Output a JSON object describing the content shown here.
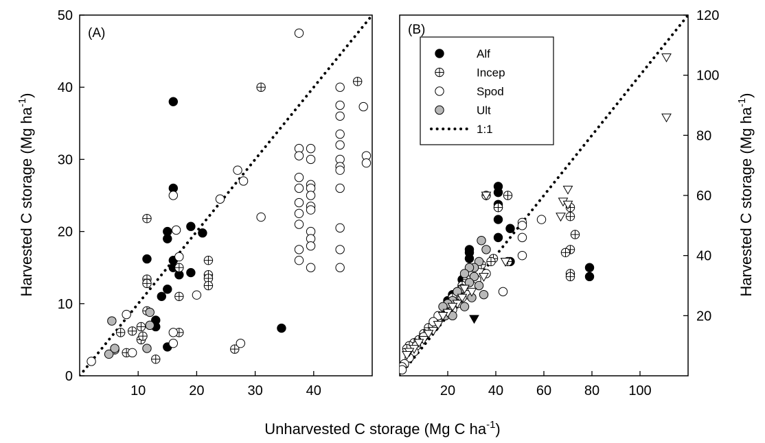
{
  "figure": {
    "xlabel_base": "Unharvested C storage (Mg C ha",
    "xlabel_exp": "-1",
    "xlabel_end": ")",
    "ylabel_base": "Harvested C storage (Mg ha",
    "ylabel_exp": "-1",
    "ylabel_end": ")"
  },
  "chart_data": [
    {
      "type": "scatter",
      "panel_label": "(A)",
      "xlim": [
        0,
        50
      ],
      "ylim": [
        0,
        50
      ],
      "xticks": [
        10,
        20,
        30,
        40
      ],
      "yticks": [
        0,
        10,
        20,
        30,
        40,
        50
      ],
      "y_axis_side": "left",
      "grid": false,
      "series": [
        {
          "name": "Alf",
          "marker": "filled-circle",
          "points": [
            [
              16,
              38
            ],
            [
              16,
              26
            ],
            [
              11.5,
              16.2
            ],
            [
              15,
              20
            ],
            [
              15,
              19
            ],
            [
              16,
              16
            ],
            [
              16,
              15
            ],
            [
              19,
              20.7
            ],
            [
              21,
              19.8
            ],
            [
              17,
              14
            ],
            [
              19,
              14.3
            ],
            [
              15,
              12
            ],
            [
              14,
              11
            ],
            [
              13,
              7.7
            ],
            [
              13,
              6.8
            ],
            [
              15,
              4
            ],
            [
              34.5,
              6.6
            ]
          ]
        },
        {
          "name": "Incep",
          "marker": "crossed-circle",
          "points": [
            [
              11.5,
              21.8
            ],
            [
              31,
              40
            ],
            [
              47.5,
              40.8
            ],
            [
              11.5,
              13.4
            ],
            [
              11.5,
              12.8
            ],
            [
              17,
              15
            ],
            [
              17,
              11
            ],
            [
              22,
              16
            ],
            [
              22,
              14
            ],
            [
              22,
              13.5
            ],
            [
              22,
              12.5
            ],
            [
              11.5,
              9
            ],
            [
              9,
              6.2
            ],
            [
              10.5,
              6.8
            ],
            [
              10.5,
              5
            ],
            [
              10.8,
              5.5
            ],
            [
              7,
              6
            ],
            [
              8,
              3.2
            ],
            [
              6,
              3.6
            ],
            [
              13,
              2.3
            ],
            [
              17,
              6
            ],
            [
              26.5,
              3.7
            ]
          ]
        },
        {
          "name": "Spod",
          "marker": "open-circle",
          "points": [
            [
              37.5,
              47.5
            ],
            [
              16,
              25
            ],
            [
              16.5,
              20.2
            ],
            [
              17,
              16.5
            ],
            [
              20,
              11.2
            ],
            [
              16,
              6
            ],
            [
              16,
              4.5
            ],
            [
              27.5,
              4.5
            ],
            [
              8,
              8.5
            ],
            [
              2,
              2
            ],
            [
              9,
              3.2
            ],
            [
              24,
              24.5
            ],
            [
              27,
              28.5
            ],
            [
              28,
              27
            ],
            [
              31,
              22
            ],
            [
              37.5,
              31.5
            ],
            [
              37.5,
              30.5
            ],
            [
              37.5,
              27.5
            ],
            [
              37.5,
              26
            ],
            [
              37.5,
              24
            ],
            [
              37.5,
              22.5
            ],
            [
              37.5,
              21
            ],
            [
              37.5,
              17.5
            ],
            [
              37.5,
              16
            ],
            [
              39.5,
              31.5
            ],
            [
              39.5,
              30
            ],
            [
              39.5,
              26.5
            ],
            [
              39.5,
              26
            ],
            [
              39.5,
              25
            ],
            [
              39.5,
              23.5
            ],
            [
              39.5,
              23
            ],
            [
              39.5,
              20
            ],
            [
              39.5,
              19
            ],
            [
              39.5,
              18
            ],
            [
              39.5,
              15
            ],
            [
              44.5,
              40
            ],
            [
              44.5,
              37.5
            ],
            [
              44.5,
              36
            ],
            [
              44.5,
              33.5
            ],
            [
              44.5,
              32
            ],
            [
              44.5,
              30
            ],
            [
              44.5,
              29
            ],
            [
              44.5,
              28.5
            ],
            [
              44.5,
              26
            ],
            [
              44.5,
              20.5
            ],
            [
              44.5,
              17.5
            ],
            [
              44.5,
              15
            ],
            [
              48.5,
              37.3
            ],
            [
              49,
              30.5
            ],
            [
              49,
              29.5
            ]
          ]
        },
        {
          "name": "Ult",
          "marker": "gray-circle",
          "points": [
            [
              5.5,
              7.6
            ],
            [
              12,
              8.8
            ],
            [
              12,
              7
            ],
            [
              11.5,
              3.8
            ],
            [
              5,
              3
            ],
            [
              6,
              3.8
            ]
          ]
        }
      ],
      "reference_line": {
        "name": "1:1",
        "style": "dotted",
        "from": [
          0,
          0
        ],
        "to": [
          50,
          50
        ]
      }
    },
    {
      "type": "scatter",
      "panel_label": "(B)",
      "xlim": [
        0,
        120
      ],
      "ylim": [
        0,
        120
      ],
      "xticks": [
        20,
        40,
        60,
        80,
        100
      ],
      "yticks": [
        20,
        40,
        60,
        80,
        100,
        120
      ],
      "y_axis_side": "right",
      "grid": false,
      "legend": {
        "placement": "upper-left",
        "entries": [
          "Alf",
          "Incep",
          "Spod",
          "Ult",
          "1:1"
        ]
      },
      "series": [
        {
          "name": "Alf",
          "marker": "filled-circle",
          "points": [
            [
              41,
              63
            ],
            [
              41,
              61
            ],
            [
              41,
              57
            ],
            [
              41,
              56
            ],
            [
              41,
              52
            ],
            [
              46,
              49
            ],
            [
              41,
              46
            ],
            [
              46,
              38
            ],
            [
              29,
              42
            ],
            [
              29,
              41
            ],
            [
              29,
              39
            ],
            [
              26,
              32
            ],
            [
              26,
              30
            ],
            [
              24,
              28
            ],
            [
              22,
              27
            ],
            [
              20,
              25
            ],
            [
              22,
              23
            ],
            [
              20,
              22
            ],
            [
              79,
              36
            ],
            [
              79,
              33
            ]
          ]
        },
        {
          "name": "Incep",
          "marker": "crossed-circle",
          "points": [
            [
              36,
              60
            ],
            [
              45,
              60
            ],
            [
              71,
              56
            ],
            [
              71,
              53
            ],
            [
              73,
              47
            ],
            [
              71,
              42
            ],
            [
              69,
              41
            ],
            [
              71,
              34
            ],
            [
              71,
              33
            ],
            [
              45,
              38
            ],
            [
              41,
              56
            ],
            [
              39,
              39
            ],
            [
              38,
              38
            ],
            [
              34,
              37
            ],
            [
              28,
              32
            ],
            [
              26,
              30
            ],
            [
              22,
              26
            ],
            [
              16,
              19
            ],
            [
              12,
              16
            ],
            [
              10,
              14
            ],
            [
              8,
              12
            ],
            [
              6,
              11
            ],
            [
              4,
              10
            ],
            [
              3,
              9
            ]
          ]
        },
        {
          "name": "Spod",
          "marker": "open-circle",
          "points": [
            [
              59,
              52
            ],
            [
              51,
              51
            ],
            [
              51,
              50
            ],
            [
              51,
              46
            ],
            [
              51,
              40
            ],
            [
              43,
              28
            ],
            [
              36,
              34
            ],
            [
              32,
              32
            ],
            [
              30,
              30
            ],
            [
              28,
              27
            ],
            [
              26,
              26
            ],
            [
              24,
              24
            ],
            [
              22,
              22
            ],
            [
              20,
              21
            ],
            [
              18,
              20
            ],
            [
              16,
              20
            ],
            [
              14,
              18
            ],
            [
              10,
              13
            ],
            [
              7,
              10
            ],
            [
              6,
              8
            ],
            [
              4,
              6
            ],
            [
              2,
              4
            ],
            [
              1,
              3
            ],
            [
              1,
              2
            ]
          ]
        },
        {
          "name": "Ult",
          "marker": "gray-circle",
          "points": [
            [
              34,
              45
            ],
            [
              36,
              42
            ],
            [
              33,
              38
            ],
            [
              31,
              36
            ],
            [
              29,
              36
            ],
            [
              27,
              34
            ],
            [
              31,
              33
            ],
            [
              29,
              31
            ],
            [
              33,
              30
            ],
            [
              26,
              29
            ],
            [
              24,
              28
            ],
            [
              22,
              25
            ],
            [
              20,
              24
            ],
            [
              18,
              23
            ],
            [
              27,
              23
            ],
            [
              35,
              27
            ],
            [
              30,
              26
            ],
            [
              19,
              20
            ],
            [
              22,
              20
            ]
          ]
        },
        {
          "name": "open triangle",
          "marker": "open-triangle-down",
          "points": [
            [
              111,
              106
            ],
            [
              111,
              86
            ],
            [
              36,
              60
            ],
            [
              70,
              62
            ],
            [
              68,
              58
            ],
            [
              70,
              57
            ],
            [
              67,
              53
            ],
            [
              44,
              38
            ],
            [
              35,
              33
            ],
            [
              27,
              29
            ],
            [
              30,
              28
            ],
            [
              26,
              26
            ],
            [
              24,
              24
            ],
            [
              22,
              23
            ],
            [
              20,
              21
            ],
            [
              18,
              20
            ],
            [
              16,
              17
            ],
            [
              14,
              15
            ],
            [
              12,
              14
            ],
            [
              10,
              12
            ],
            [
              8,
              11
            ],
            [
              6,
              9
            ],
            [
              4,
              8
            ],
            [
              3,
              7
            ]
          ]
        },
        {
          "name": "filled triangle",
          "marker": "filled-triangle-down",
          "points": [
            [
              31,
              19
            ]
          ]
        }
      ],
      "reference_line": {
        "name": "1:1",
        "style": "dotted",
        "from": [
          0,
          0
        ],
        "to": [
          120,
          120
        ]
      }
    }
  ]
}
